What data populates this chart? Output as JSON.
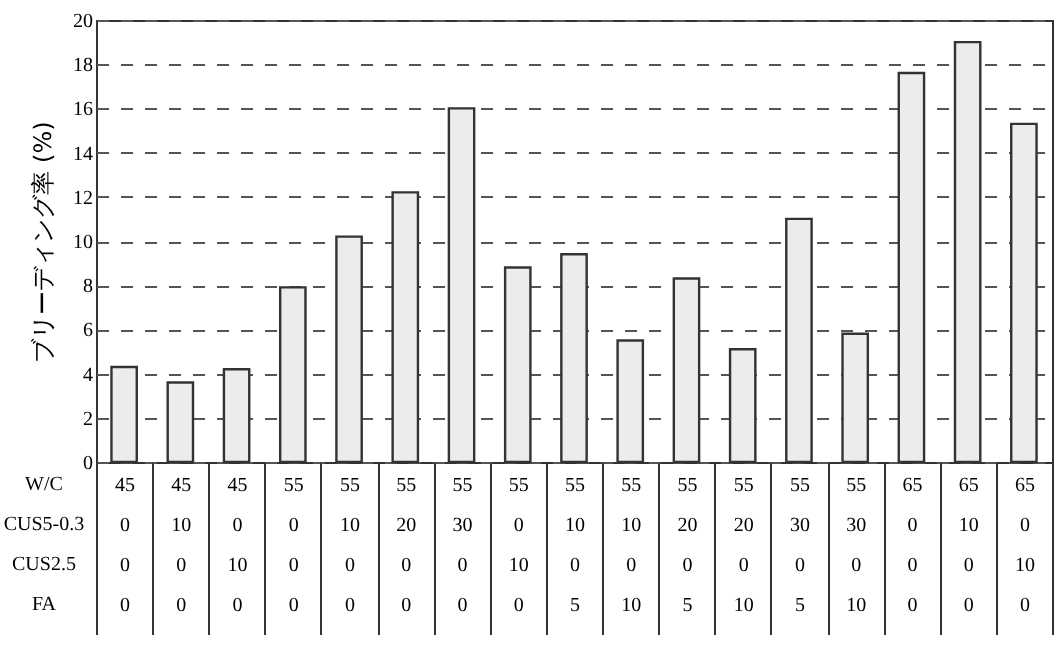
{
  "chart_data": {
    "type": "bar",
    "ylabel": "ブリーディング率 (%)",
    "categories": [
      "45\n0\n0\n0",
      "45\n10\n0\n0",
      "45\n0\n10\n0",
      "55\n0\n0\n0",
      "55\n10\n0\n0",
      "55\n20\n0\n0",
      "55\n30\n0\n0",
      "55\n0\n10\n0",
      "55\n10\n0\n5",
      "55\n10\n0\n10",
      "55\n20\n0\n5",
      "55\n20\n0\n10",
      "55\n30\n0\n5",
      "55\n30\n0\n10",
      "65\n0\n0\n0",
      "65\n10\n0\n0",
      "65\n0\n10\n0"
    ],
    "values": [
      4.3,
      3.6,
      4.2,
      7.9,
      10.2,
      12.2,
      16.0,
      8.8,
      9.4,
      5.5,
      8.3,
      5.1,
      11.0,
      5.8,
      17.6,
      19.0,
      15.3
    ],
    "color": "#ececec",
    "annotations": [
      "W/C",
      "CUS5-0.3",
      "CUS2.5",
      "FA"
    ],
    "ylim": [
      0,
      20
    ],
    "yticks": [
      0,
      2,
      4,
      6,
      8,
      10,
      12,
      14,
      16,
      18,
      20
    ],
    "grid": "y"
  }
}
